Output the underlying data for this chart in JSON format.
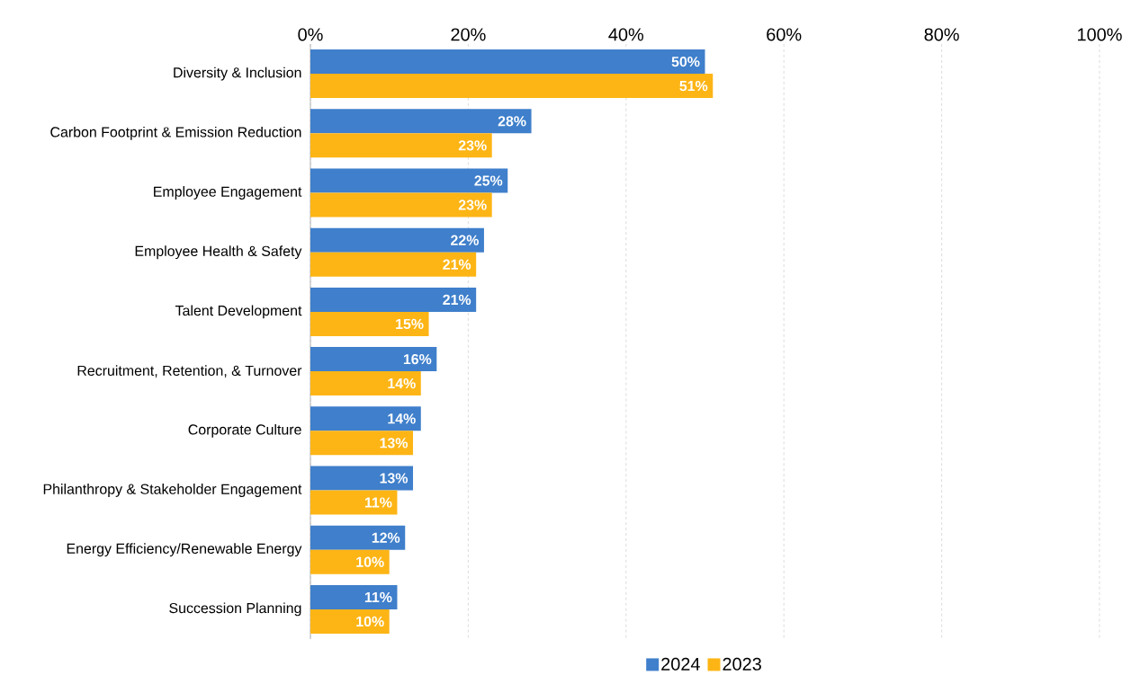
{
  "chart_data": {
    "type": "bar",
    "orientation": "horizontal",
    "categories": [
      "Diversity & Inclusion",
      "Carbon Footprint & Emission Reduction",
      "Employee Engagement",
      "Employee Health & Safety",
      "Talent Development",
      "Recruitment, Retention, & Turnover",
      "Corporate Culture",
      "Philanthropy & Stakeholder Engagement",
      "Energy Efficiency/Renewable Energy",
      "Succession Planning"
    ],
    "series": [
      {
        "name": "2024",
        "color": "#3f7fcb",
        "values": [
          50,
          28,
          25,
          22,
          21,
          16,
          14,
          13,
          12,
          11
        ],
        "value_labels": [
          "50%",
          "28%",
          "25%",
          "22%",
          "21%",
          "16%",
          "14%",
          "13%",
          "12%",
          "11%"
        ]
      },
      {
        "name": "2023",
        "color": "#fdb515",
        "values": [
          51,
          23,
          23,
          21,
          15,
          14,
          13,
          11,
          10,
          10
        ],
        "value_labels": [
          "51%",
          "23%",
          "23%",
          "21%",
          "15%",
          "14%",
          "13%",
          "11%",
          "10%",
          "10%"
        ]
      }
    ],
    "xlim": [
      0,
      100
    ],
    "xticks": [
      {
        "value": 0,
        "label": "0%"
      },
      {
        "value": 20,
        "label": "20%"
      },
      {
        "value": 40,
        "label": "40%"
      },
      {
        "value": 60,
        "label": "60%"
      },
      {
        "value": 80,
        "label": "80%"
      },
      {
        "value": 100,
        "label": "100%"
      }
    ],
    "grid": "x",
    "legend": "bottom"
  }
}
